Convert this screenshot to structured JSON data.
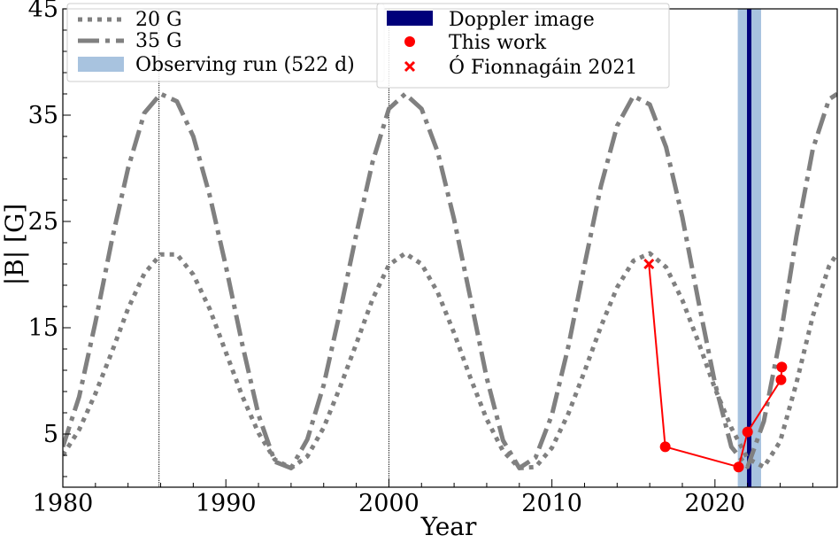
{
  "chart_data": {
    "type": "line",
    "xlabel": "Year",
    "ylabel": "|B| [G]",
    "xlim": [
      1980,
      2027.5
    ],
    "ylim": [
      0,
      45
    ],
    "x_ticks": [
      1980,
      1990,
      2000,
      2010,
      2020
    ],
    "y_ticks": [
      5,
      15,
      25,
      35,
      45
    ],
    "grid": false,
    "legend_left_location": "upper-left",
    "legend_right_location": "upper-center",
    "cycle_vertical_lines": [
      1985.9,
      2000.0
    ],
    "series": [
      {
        "name": "20 G",
        "style": "dotted",
        "color": "#808080",
        "x": [
          1980,
          1981,
          1982,
          1983,
          1984,
          1985,
          1986,
          1987,
          1988,
          1989,
          1990,
          1991,
          1992,
          1993,
          1994,
          1995,
          1996,
          1997,
          1998,
          1999,
          2000,
          2001,
          2002,
          2003,
          2004,
          2005,
          2006,
          2007,
          2008,
          2009,
          2010,
          2011,
          2012,
          2013,
          2014,
          2015,
          2016,
          2017,
          2018,
          2019,
          2020,
          2021,
          2022,
          2023,
          2024,
          2025,
          2026,
          2027,
          2027.5
        ],
        "values": [
          3.0,
          5.4,
          8.8,
          12.7,
          16.8,
          20.1,
          21.9,
          21.9,
          20.0,
          16.8,
          12.7,
          8.6,
          5.1,
          2.6,
          1.8,
          2.9,
          5.6,
          9.4,
          13.5,
          17.7,
          20.9,
          22.0,
          21.0,
          18.3,
          14.5,
          10.3,
          6.4,
          3.4,
          1.8,
          1.9,
          3.7,
          6.9,
          10.9,
          15.1,
          18.8,
          21.3,
          22.0,
          20.7,
          17.6,
          13.6,
          9.3,
          5.6,
          2.7,
          1.9,
          4.3,
          9.8,
          16.1,
          20.8,
          22.0
        ]
      },
      {
        "name": "35 G",
        "style": "dash-dot",
        "color": "#808080",
        "x": [
          1980,
          1981,
          1982,
          1983,
          1984,
          1985,
          1986,
          1987,
          1988,
          1989,
          1990,
          1991,
          1992,
          1993,
          1994,
          1995,
          1996,
          1997,
          1998,
          1999,
          2000,
          2001,
          2002,
          2003,
          2004,
          2005,
          2006,
          2007,
          2008,
          2009,
          2010,
          2011,
          2012,
          2013,
          2014,
          2015,
          2016,
          2017,
          2018,
          2019,
          2020,
          2021,
          2022,
          2023,
          2024,
          2025,
          2026,
          2027,
          2027.5
        ],
        "values": [
          3.8,
          8.5,
          15.5,
          23.2,
          30.0,
          35.2,
          37.0,
          36.3,
          33.0,
          27.5,
          20.8,
          13.5,
          6.8,
          2.4,
          1.8,
          4.5,
          9.6,
          16.5,
          23.8,
          30.6,
          35.6,
          37.0,
          35.6,
          31.5,
          25.2,
          17.8,
          10.3,
          4.4,
          1.8,
          2.8,
          6.8,
          13.2,
          20.9,
          28.3,
          34.0,
          36.8,
          36.0,
          32.0,
          25.4,
          17.4,
          9.8,
          3.8,
          1.9,
          6.2,
          14.0,
          23.6,
          31.8,
          36.5,
          37.0
        ]
      },
      {
        "name": "Observing run (522 d)",
        "style": "span",
        "color": "#a8c3df",
        "x_range": [
          2021.4,
          2022.83
        ]
      },
      {
        "name": "Doppler image",
        "style": "vline",
        "color": "#00007a",
        "x": 2022.1
      },
      {
        "name": "This work",
        "style": "markers-line",
        "color": "#ff0000",
        "x": [
          2016.95,
          2021.45,
          2022.0,
          2024.05,
          2024.1
        ],
        "values": [
          3.8,
          1.9,
          5.2,
          10.1,
          11.3
        ]
      },
      {
        "name": "Ó Fionnagáin 2021",
        "style": "x-marker",
        "color": "#ff0000",
        "x": [
          2015.95
        ],
        "values": [
          21.0
        ]
      }
    ]
  }
}
